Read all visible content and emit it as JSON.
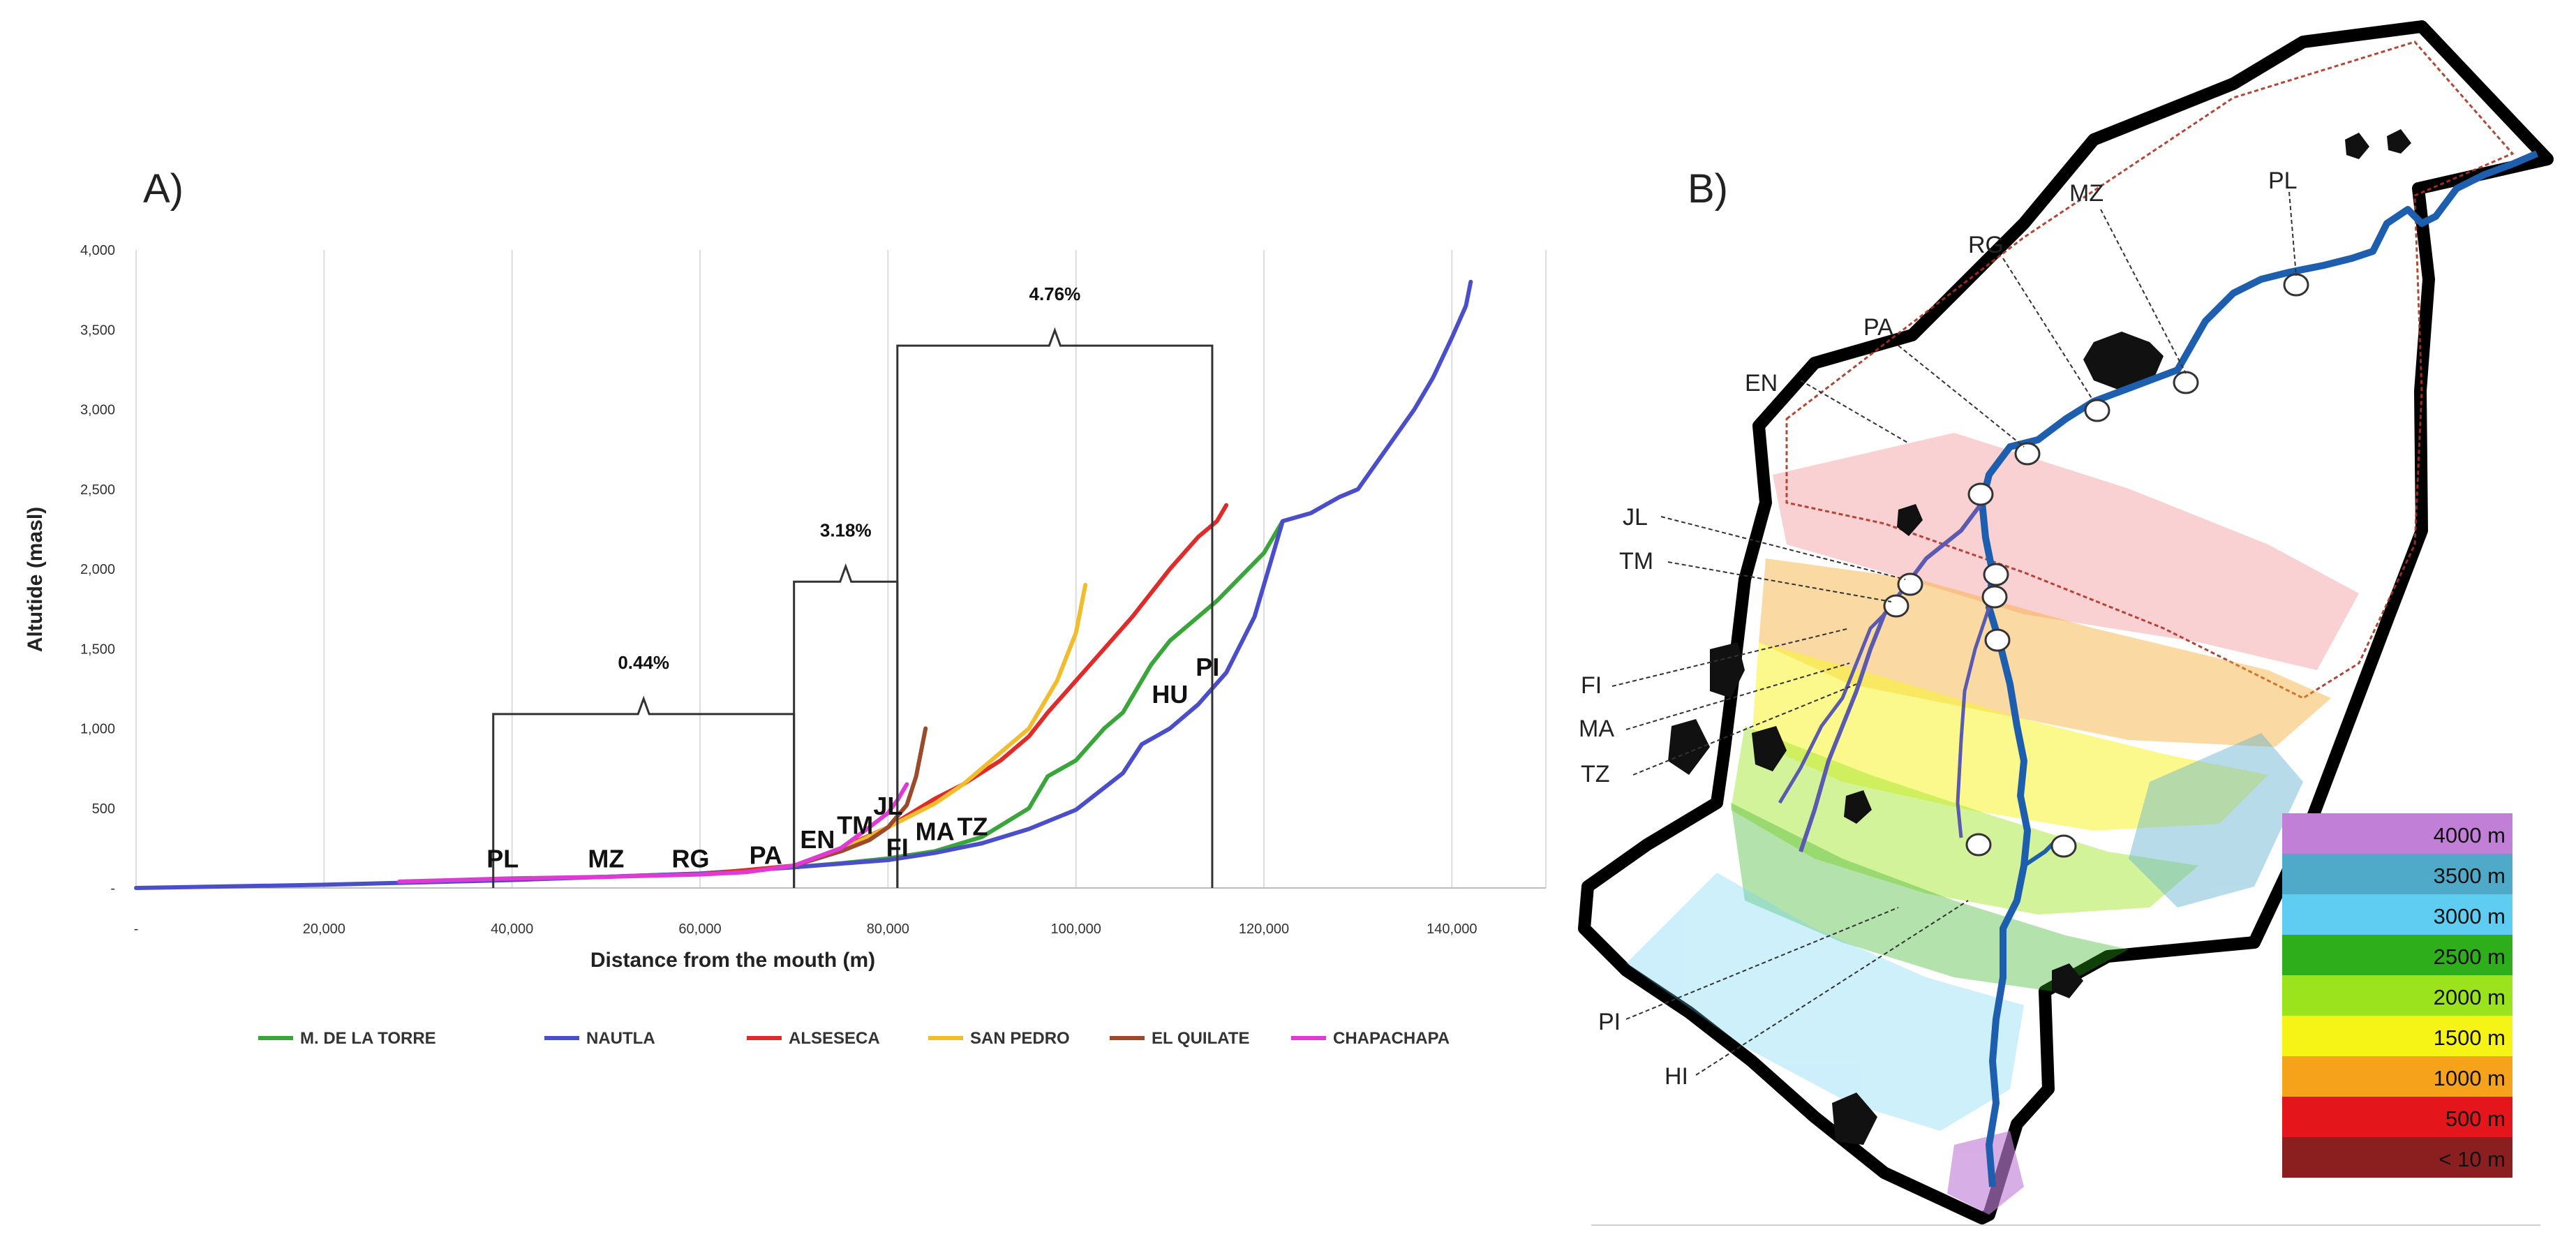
{
  "panel_a_label": "A)",
  "panel_b_label": "B)",
  "chart_data": {
    "type": "line",
    "title": "",
    "xlabel": "Distance from the mouth (m)",
    "ylabel": "Altutide (masl)",
    "xlim": [
      0,
      150000
    ],
    "ylim": [
      0,
      4000
    ],
    "x_ticks": [
      {
        "value": 0,
        "label": "-"
      },
      {
        "value": 20000,
        "label": "20,000"
      },
      {
        "value": 40000,
        "label": "40,000"
      },
      {
        "value": 60000,
        "label": "60,000"
      },
      {
        "value": 80000,
        "label": "80,000"
      },
      {
        "value": 100000,
        "label": "100,000"
      },
      {
        "value": 120000,
        "label": "120,000"
      },
      {
        "value": 140000,
        "label": "140,000"
      }
    ],
    "y_ticks": [
      {
        "value": 0,
        "label": "-"
      },
      {
        "value": 500,
        "label": "500"
      },
      {
        "value": 1000,
        "label": "1,000"
      },
      {
        "value": 1500,
        "label": "1,500"
      },
      {
        "value": 2000,
        "label": "2,000"
      },
      {
        "value": 2500,
        "label": "2,500"
      },
      {
        "value": 3000,
        "label": "3,000"
      },
      {
        "value": 3500,
        "label": "3,500"
      },
      {
        "value": 4000,
        "label": "4,000"
      }
    ],
    "grid": "vertical",
    "legend_position": "bottom",
    "series": [
      {
        "name": "M. DE LA TORRE",
        "color": "#3aa53a",
        "x": [
          40000,
          50000,
          60000,
          70000,
          75000,
          80000,
          85000,
          90000,
          95000,
          97000,
          100000,
          103000,
          105000,
          108000,
          110000,
          115000,
          120000,
          122000
        ],
        "y": [
          55,
          70,
          90,
          130,
          155,
          185,
          230,
          320,
          500,
          700,
          800,
          1000,
          1100,
          1400,
          1550,
          1800,
          2100,
          2300
        ]
      },
      {
        "name": "NAUTLA",
        "color": "#4a4ec8",
        "x": [
          0,
          20000,
          40000,
          60000,
          70000,
          80000,
          85000,
          90000,
          95000,
          100000,
          105000,
          107000,
          110000,
          113000,
          116000,
          119000,
          121000,
          122000,
          125000,
          128000,
          130000,
          133000,
          136000,
          138000,
          140000,
          141500,
          142000
        ],
        "y": [
          0,
          20,
          50,
          90,
          130,
          175,
          220,
          280,
          370,
          490,
          720,
          900,
          1000,
          1150,
          1350,
          1700,
          2100,
          2300,
          2350,
          2450,
          2500,
          2750,
          3000,
          3200,
          3450,
          3650,
          3800
        ]
      },
      {
        "name": "ALSESECA",
        "color": "#e02b2b",
        "x": [
          60000,
          70000,
          75000,
          80000,
          85000,
          88000,
          92000,
          95000,
          97000,
          100000,
          103000,
          106000,
          110000,
          113000,
          115000,
          116000
        ],
        "y": [
          85,
          140,
          250,
          380,
          560,
          650,
          800,
          950,
          1100,
          1300,
          1500,
          1700,
          2000,
          2200,
          2300,
          2400
        ]
      },
      {
        "name": "SAN PEDRO",
        "color": "#f2bd2c",
        "x": [
          70000,
          75000,
          80000,
          85000,
          88000,
          92000,
          95000,
          98000,
          100000,
          101000
        ],
        "y": [
          140,
          240,
          380,
          530,
          650,
          850,
          1000,
          1300,
          1600,
          1900
        ]
      },
      {
        "name": "EL QUILATE",
        "color": "#9b4a2c",
        "x": [
          70000,
          75000,
          78000,
          80000,
          82000,
          83000,
          84000
        ],
        "y": [
          140,
          230,
          300,
          380,
          520,
          700,
          1000
        ]
      },
      {
        "name": "CHAPACHAPA",
        "color": "#e03ad6",
        "x": [
          28000,
          40000,
          50000,
          60000,
          65000,
          70000,
          75000,
          78000,
          80000,
          81000,
          82000
        ],
        "y": [
          40,
          60,
          70,
          85,
          100,
          140,
          250,
          380,
          470,
          550,
          650
        ]
      }
    ],
    "stations": [
      {
        "code": "PL",
        "x": 39000,
        "y": 130
      },
      {
        "code": "MZ",
        "x": 50000,
        "y": 130
      },
      {
        "code": "RG",
        "x": 59000,
        "y": 130
      },
      {
        "code": "PA",
        "x": 67000,
        "y": 150
      },
      {
        "code": "EN",
        "x": 72500,
        "y": 250
      },
      {
        "code": "TM",
        "x": 76500,
        "y": 340
      },
      {
        "code": "JL",
        "x": 80000,
        "y": 460
      },
      {
        "code": "FI",
        "x": 81000,
        "y": 200
      },
      {
        "code": "MA",
        "x": 85000,
        "y": 300
      },
      {
        "code": "TZ",
        "x": 89000,
        "y": 330
      },
      {
        "code": "HU",
        "x": 110000,
        "y": 1160
      },
      {
        "code": "PI",
        "x": 114000,
        "y": 1330
      }
    ],
    "annotations": [
      {
        "label": "0.44%",
        "x_start": 38000,
        "x_end": 70000,
        "bracket_y": 1090,
        "drop_to": 0
      },
      {
        "label": "3.18%",
        "x_start": 70000,
        "x_end": 81000,
        "bracket_y": 1920,
        "drop_to": 0
      },
      {
        "label": "4.76%",
        "x_start": 81000,
        "x_end": 114500,
        "bracket_y": 3400,
        "drop_to": 0
      }
    ]
  },
  "map": {
    "river_color": "#1d5fae",
    "tributary_color": "#5a5ab0",
    "town_color": "#111111",
    "stations": [
      "PL",
      "MZ",
      "RG",
      "PA",
      "EN",
      "JL",
      "TM",
      "FI",
      "MA",
      "TZ",
      "PI",
      "HI"
    ],
    "elevation_legend": [
      {
        "label": "4000 m",
        "color": "#c27fd8"
      },
      {
        "label": "3500 m",
        "color": "#4fa9c8"
      },
      {
        "label": "3000 m",
        "color": "#5fcdf2"
      },
      {
        "label": "2500 m",
        "color": "#2fae1c"
      },
      {
        "label": "2000 m",
        "color": "#9be31d"
      },
      {
        "label": "1500 m",
        "color": "#f6f316"
      },
      {
        "label": "1000 m",
        "color": "#f7a21b"
      },
      {
        "label": "500 m",
        "color": "#e4161b"
      },
      {
        "label": "< 10 m",
        "color": "#8b1f1f"
      }
    ]
  }
}
